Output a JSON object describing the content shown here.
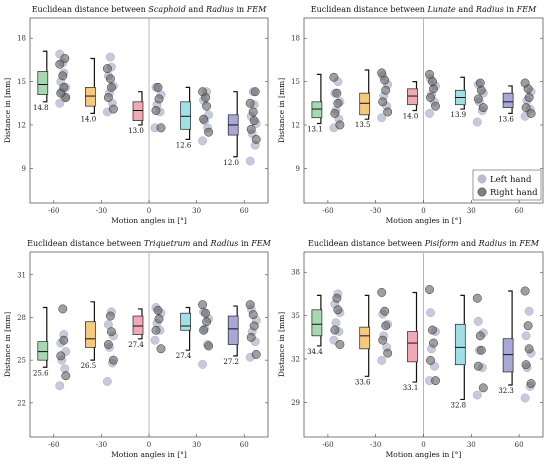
{
  "colors": {
    "left_hand": "#a9aec8",
    "right_hand": "#5f5f5f",
    "box": [
      "#a8d8b0",
      "#f6c97c",
      "#f2a9b6",
      "#9fe0e6",
      "#a9a6d8"
    ]
  },
  "legend": {
    "left": "Left hand",
    "right": "Right hand",
    "position": "bottom-right (top-right panel only)"
  },
  "chart_data": [
    {
      "type": "box-scatter",
      "title_parts": [
        "Euclidean distance between ",
        "Scaphoid",
        " and ",
        "Radius",
        " in ",
        "FEM"
      ],
      "xlabel": "Motion angles in [°]",
      "ylabel": "Distance in [mm]",
      "categories": [
        "-60",
        "-30",
        "0",
        "30",
        "60"
      ],
      "yticks": [
        9,
        12,
        15,
        18
      ],
      "ylim": [
        6.6,
        19.4
      ],
      "medians": [
        14.8,
        14.0,
        13.0,
        12.6,
        12.0
      ],
      "median_labels": [
        "14.8",
        "14.0",
        "13.0",
        "12.6",
        "12.0"
      ],
      "boxes": [
        [
          14.1,
          15.7
        ],
        [
          13.3,
          14.6
        ],
        [
          12.3,
          13.6
        ],
        [
          11.7,
          13.6
        ],
        [
          11.3,
          12.7
        ]
      ],
      "whiskers": [
        [
          13.6,
          17.1
        ],
        [
          12.8,
          16.6
        ],
        [
          12.0,
          14.3
        ],
        [
          11.0,
          14.6
        ],
        [
          9.8,
          14.3
        ]
      ],
      "left_hand": [
        [
          13.5,
          13.9,
          14.3,
          14.6,
          15.0,
          15.6,
          16.3,
          16.9
        ],
        [
          12.9,
          13.5,
          14.2,
          14.7,
          15.4,
          16.0,
          16.7
        ],
        [
          11.8,
          12.9,
          13.4,
          14.1,
          14.6
        ],
        [
          10.9,
          11.8,
          12.3,
          12.7,
          13.7,
          14.3
        ],
        [
          9.5,
          10.6,
          11.4,
          12.1,
          12.6,
          13.4,
          14.3
        ]
      ],
      "right_hand": [
        [
          13.9,
          14.2,
          14.6,
          15.4,
          16.2,
          16.6
        ],
        [
          13.1,
          13.9,
          14.6,
          15.2,
          15.9
        ],
        [
          11.8,
          13.0,
          13.8,
          14.6
        ],
        [
          11.5,
          12.4,
          13.3,
          13.9,
          14.3
        ],
        [
          11.0,
          11.7,
          12.3,
          12.9,
          13.5,
          14.3
        ]
      ],
      "show_legend": false
    },
    {
      "type": "box-scatter",
      "title_parts": [
        "Euclidean distance between ",
        "Lunate",
        " and ",
        "Radius",
        " in ",
        "FEM"
      ],
      "xlabel": "Motion angles in [°]",
      "ylabel": "Distance in [mm]",
      "categories": [
        "-60",
        "-30",
        "0",
        "30",
        "60"
      ],
      "yticks": [
        9,
        12,
        15,
        18
      ],
      "ylim": [
        6.6,
        19.4
      ],
      "medians": [
        13.1,
        13.5,
        14.0,
        13.9,
        13.6
      ],
      "median_labels": [
        "13.1",
        "13.5",
        "14.0",
        "13.9",
        "13.6"
      ],
      "boxes": [
        [
          12.5,
          13.6
        ],
        [
          12.7,
          14.2
        ],
        [
          13.4,
          14.5
        ],
        [
          13.4,
          14.4
        ],
        [
          13.2,
          14.2
        ]
      ],
      "whiskers": [
        [
          12.1,
          15.5
        ],
        [
          12.4,
          15.8
        ],
        [
          13.0,
          15.0
        ],
        [
          13.1,
          15.3
        ],
        [
          12.8,
          14.7
        ]
      ],
      "left_hand": [
        [
          11.8,
          12.4,
          13.0,
          13.6,
          14.2,
          15.0
        ],
        [
          12.5,
          13.3,
          14.0,
          14.8,
          15.4
        ],
        [
          12.8,
          13.6,
          14.1,
          14.7,
          15.2
        ],
        [
          12.2,
          13.0,
          13.6,
          14.2,
          14.8
        ],
        [
          12.6,
          13.1,
          13.7,
          14.3
        ]
      ],
      "right_hand": [
        [
          12.0,
          12.8,
          13.5,
          14.2,
          15.3
        ],
        [
          12.9,
          13.6,
          14.4,
          15.1,
          15.6
        ],
        [
          13.3,
          13.9,
          14.5,
          15.0,
          15.5
        ],
        [
          13.2,
          13.8,
          14.4,
          14.9
        ],
        [
          12.8,
          13.2,
          13.9,
          14.5,
          14.9
        ]
      ],
      "show_legend": true
    },
    {
      "type": "box-scatter",
      "title_parts": [
        "Euclidean distance between ",
        "Triquetrum",
        " and ",
        "Radius",
        " in ",
        "FEM"
      ],
      "xlabel": "Motion angles in [°]",
      "ylabel": "Distance in [mm]",
      "categories": [
        "-60",
        "-30",
        "0",
        "30",
        "60"
      ],
      "yticks": [
        22,
        25,
        28,
        31
      ],
      "ylim": [
        19.6,
        32.6
      ],
      "medians": [
        25.6,
        26.5,
        27.4,
        27.4,
        27.2
      ],
      "median_labels": [
        "25.6",
        "26.5",
        "27.4",
        "27.4",
        "27.2"
      ],
      "boxes": [
        [
          25.0,
          26.3
        ],
        [
          25.9,
          27.7
        ],
        [
          26.8,
          28.1
        ],
        [
          27.1,
          28.3
        ],
        [
          26.1,
          28.1
        ]
      ],
      "whiskers": [
        [
          24.5,
          28.7
        ],
        [
          25.0,
          29.1
        ],
        [
          26.5,
          28.6
        ],
        [
          25.7,
          28.7
        ],
        [
          25.3,
          28.8
        ]
      ],
      "left_hand": [
        [
          23.2,
          24.4,
          25.0,
          25.6,
          26.2,
          26.8
        ],
        [
          23.5,
          24.8,
          25.9,
          26.7,
          27.5,
          28.4
        ],
        [
          26.4,
          27.1,
          27.6,
          28.3,
          28.7
        ],
        [
          24.7,
          26.1,
          27.2,
          27.9,
          28.4
        ],
        [
          25.2,
          26.3,
          27.0,
          27.8,
          28.6
        ]
      ],
      "right_hand": [
        [
          23.9,
          25.3,
          26.4,
          28.6
        ],
        [
          25.0,
          26.1,
          27.0,
          28.1
        ],
        [
          25.8,
          27.1,
          27.9,
          28.5
        ],
        [
          26.0,
          27.1,
          27.7,
          28.3,
          28.9
        ],
        [
          25.4,
          26.6,
          27.4,
          28.2,
          28.9
        ]
      ],
      "show_legend": false
    },
    {
      "type": "box-scatter",
      "title_parts": [
        "Euclidean distance between ",
        "Pisiform",
        " and ",
        "Radius",
        " in ",
        "FEM"
      ],
      "xlabel": "Motion angles in [°]",
      "ylabel": "Distance in [mm]",
      "categories": [
        "-60",
        "-30",
        "0",
        "30",
        "60"
      ],
      "yticks": [
        29,
        32,
        35,
        38
      ],
      "ylim": [
        26.6,
        39.4
      ],
      "medians": [
        34.4,
        33.6,
        33.1,
        32.8,
        32.3
      ],
      "median_labels": [
        "34.4",
        "33.6",
        "33.1",
        "32.8",
        "32.3"
      ],
      "boxes": [
        [
          33.6,
          35.4
        ],
        [
          32.7,
          34.2
        ],
        [
          31.8,
          33.9
        ],
        [
          31.6,
          34.4
        ],
        [
          31.1,
          33.4
        ]
      ],
      "whiskers": [
        [
          32.9,
          36.4
        ],
        [
          30.8,
          36.4
        ],
        [
          30.4,
          36.6
        ],
        [
          29.2,
          36.4
        ],
        [
          30.2,
          36.7
        ]
      ],
      "left_hand": [
        [
          33.3,
          33.9,
          34.5,
          35.2,
          35.8,
          36.5
        ],
        [
          31.9,
          32.8,
          33.6,
          34.4,
          35.1
        ],
        [
          30.5,
          31.5,
          32.7,
          33.9,
          35.2
        ],
        [
          29.5,
          31.4,
          32.6,
          33.8,
          34.6
        ],
        [
          29.3,
          30.1,
          31.4,
          32.4,
          33.6,
          35.3
        ]
      ],
      "right_hand": [
        [
          33.0,
          34.0,
          35.4,
          36.2
        ],
        [
          32.4,
          33.3,
          34.3,
          35.3,
          36.6
        ],
        [
          30.5,
          31.9,
          33.1,
          34.0,
          36.8
        ],
        [
          30.0,
          31.5,
          32.6,
          33.6,
          36.2
        ],
        [
          30.3,
          31.6,
          32.7,
          34.3,
          36.7
        ]
      ],
      "show_legend": false
    }
  ]
}
